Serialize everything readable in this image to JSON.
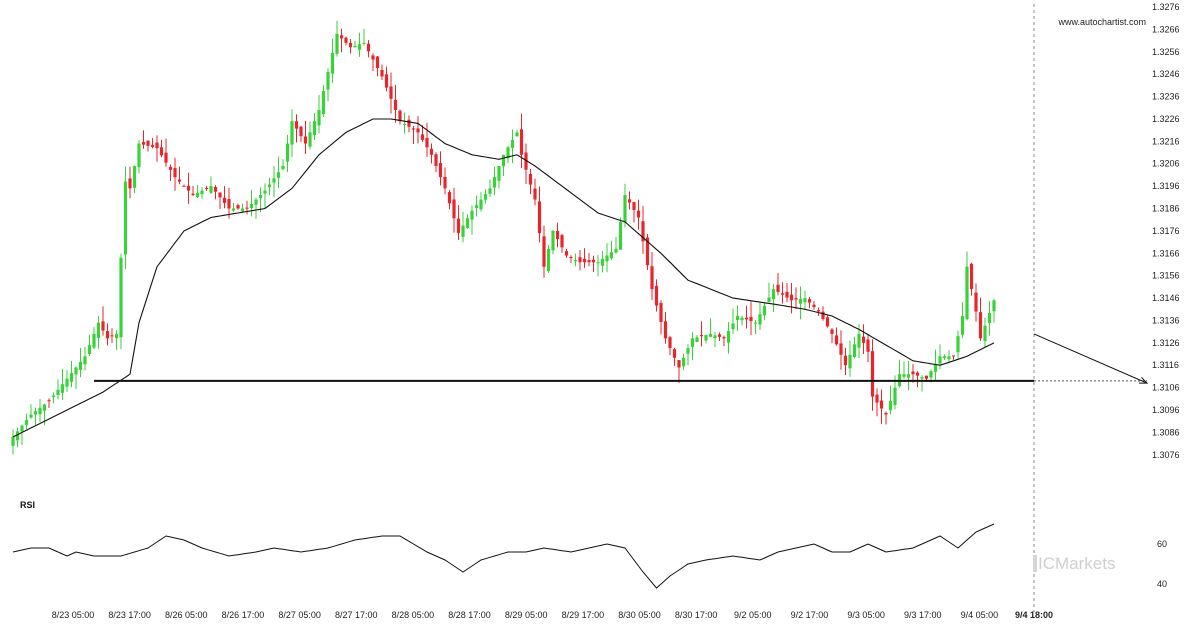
{
  "watermark": "www.autochartist.com",
  "brand": "ICMarkets",
  "colors": {
    "up": "#3ad23a",
    "down": "#e8242c",
    "ma": "#111111",
    "level": "#111111"
  },
  "chart_data": {
    "type": "candlestick",
    "price_axis": {
      "ylim": [
        1.3071,
        1.3276
      ],
      "ticks": [
        "1.3276",
        "1.3266",
        "1.3256",
        "1.3246",
        "1.3236",
        "1.3226",
        "1.3216",
        "1.3206",
        "1.3196",
        "1.3186",
        "1.3176",
        "1.3166",
        "1.3156",
        "1.3146",
        "1.3136",
        "1.3126",
        "1.3116",
        "1.3106",
        "1.3096",
        "1.3086",
        "1.3076"
      ]
    },
    "x_ticks": [
      "8/23 05:00",
      "8/23 17:00",
      "8/26 05:00",
      "8/26 17:00",
      "8/27 05:00",
      "8/27 17:00",
      "8/28 05:00",
      "8/28 17:00",
      "8/29 05:00",
      "8/29 17:00",
      "8/30 05:00",
      "8/30 17:00",
      "9/2 05:00",
      "9/2 17:00",
      "9/3 05:00",
      "9/3 17:00",
      "9/4 05:00",
      "9/4 18:00"
    ],
    "highlight_tick": "9/4 18:00",
    "support_level": 1.3109,
    "forecast": {
      "from": [
        "9/4 18:00",
        1.313
      ],
      "to": [
        1.3108
      ]
    },
    "close_anchors": [
      [
        0,
        1.3084
      ],
      [
        4,
        1.3094
      ],
      [
        8,
        1.31
      ],
      [
        12,
        1.311
      ],
      [
        16,
        1.312
      ],
      [
        19,
        1.3135
      ],
      [
        21,
        1.3128
      ],
      [
        23,
        1.313
      ],
      [
        25,
        1.3198
      ],
      [
        26,
        1.3195
      ],
      [
        28,
        1.3215
      ],
      [
        32,
        1.3213
      ],
      [
        36,
        1.32
      ],
      [
        40,
        1.3192
      ],
      [
        44,
        1.3196
      ],
      [
        48,
        1.3186
      ],
      [
        52,
        1.3186
      ],
      [
        56,
        1.3194
      ],
      [
        60,
        1.3205
      ],
      [
        62,
        1.3225
      ],
      [
        65,
        1.3215
      ],
      [
        68,
        1.323
      ],
      [
        72,
        1.3264
      ],
      [
        75,
        1.3258
      ],
      [
        78,
        1.326
      ],
      [
        82,
        1.3245
      ],
      [
        86,
        1.3225
      ],
      [
        90,
        1.322
      ],
      [
        93,
        1.321
      ],
      [
        96,
        1.3195
      ],
      [
        99,
        1.3175
      ],
      [
        102,
        1.3185
      ],
      [
        106,
        1.3195
      ],
      [
        109,
        1.321
      ],
      [
        112,
        1.322
      ],
      [
        113,
        1.321
      ],
      [
        116,
        1.319
      ],
      [
        118,
        1.316
      ],
      [
        120,
        1.3176
      ],
      [
        123,
        1.3165
      ],
      [
        126,
        1.3162
      ],
      [
        130,
        1.3162
      ],
      [
        134,
        1.3168
      ],
      [
        136,
        1.3192
      ],
      [
        139,
        1.3182
      ],
      [
        142,
        1.315
      ],
      [
        145,
        1.3128
      ],
      [
        148,
        1.3115
      ],
      [
        151,
        1.3128
      ],
      [
        155,
        1.313
      ],
      [
        158,
        1.3128
      ],
      [
        161,
        1.3138
      ],
      [
        165,
        1.3135
      ],
      [
        169,
        1.315
      ],
      [
        173,
        1.3145
      ],
      [
        176,
        1.3146
      ],
      [
        179,
        1.314
      ],
      [
        182,
        1.313
      ],
      [
        185,
        1.3116
      ],
      [
        188,
        1.313
      ],
      [
        190,
        1.3122
      ],
      [
        191,
        1.3102
      ],
      [
        194,
        1.3094
      ],
      [
        197,
        1.3112
      ],
      [
        200,
        1.3112
      ],
      [
        203,
        1.311
      ],
      [
        206,
        1.312
      ],
      [
        209,
        1.312
      ],
      [
        211,
        1.3138
      ],
      [
        212,
        1.316
      ],
      [
        214,
        1.314
      ],
      [
        215,
        1.3128
      ],
      [
        218,
        1.3145
      ]
    ],
    "ma_anchors": [
      [
        0,
        1.3084
      ],
      [
        10,
        1.3094
      ],
      [
        20,
        1.3104
      ],
      [
        26,
        1.3112
      ],
      [
        28,
        1.3135
      ],
      [
        32,
        1.316
      ],
      [
        38,
        1.3176
      ],
      [
        44,
        1.3182
      ],
      [
        50,
        1.3184
      ],
      [
        56,
        1.3186
      ],
      [
        62,
        1.3195
      ],
      [
        68,
        1.321
      ],
      [
        74,
        1.322
      ],
      [
        80,
        1.3226
      ],
      [
        84,
        1.3226
      ],
      [
        90,
        1.3224
      ],
      [
        96,
        1.3215
      ],
      [
        102,
        1.321
      ],
      [
        108,
        1.3208
      ],
      [
        112,
        1.321
      ],
      [
        116,
        1.3205
      ],
      [
        122,
        1.3196
      ],
      [
        130,
        1.3184
      ],
      [
        136,
        1.318
      ],
      [
        144,
        1.3166
      ],
      [
        150,
        1.3154
      ],
      [
        160,
        1.3146
      ],
      [
        170,
        1.3143
      ],
      [
        176,
        1.3141
      ],
      [
        182,
        1.3138
      ],
      [
        188,
        1.3132
      ],
      [
        194,
        1.3125
      ],
      [
        200,
        1.3118
      ],
      [
        206,
        1.3116
      ],
      [
        212,
        1.312
      ],
      [
        218,
        1.3126
      ]
    ]
  },
  "rsi": {
    "title": "RSI",
    "ylim": [
      33,
      77
    ],
    "ticks": [
      "60",
      "40"
    ],
    "anchors": [
      [
        0,
        56
      ],
      [
        4,
        58
      ],
      [
        8,
        58
      ],
      [
        12,
        54
      ],
      [
        14,
        56
      ],
      [
        18,
        54
      ],
      [
        24,
        54
      ],
      [
        30,
        58
      ],
      [
        34,
        64
      ],
      [
        38,
        62
      ],
      [
        42,
        58
      ],
      [
        48,
        54
      ],
      [
        54,
        56
      ],
      [
        58,
        58
      ],
      [
        64,
        56
      ],
      [
        70,
        58
      ],
      [
        76,
        62
      ],
      [
        82,
        64
      ],
      [
        86,
        64
      ],
      [
        92,
        56
      ],
      [
        96,
        52
      ],
      [
        100,
        46
      ],
      [
        104,
        52
      ],
      [
        110,
        56
      ],
      [
        114,
        56
      ],
      [
        118,
        58
      ],
      [
        124,
        56
      ],
      [
        128,
        58
      ],
      [
        132,
        60
      ],
      [
        136,
        58
      ],
      [
        140,
        46
      ],
      [
        143,
        38
      ],
      [
        146,
        44
      ],
      [
        150,
        50
      ],
      [
        154,
        52
      ],
      [
        160,
        54
      ],
      [
        166,
        52
      ],
      [
        170,
        56
      ],
      [
        174,
        58
      ],
      [
        178,
        60
      ],
      [
        182,
        56
      ],
      [
        186,
        56
      ],
      [
        190,
        60
      ],
      [
        194,
        56
      ],
      [
        200,
        58
      ],
      [
        206,
        64
      ],
      [
        210,
        58
      ],
      [
        214,
        66
      ],
      [
        216,
        68
      ],
      [
        218,
        70
      ]
    ]
  }
}
